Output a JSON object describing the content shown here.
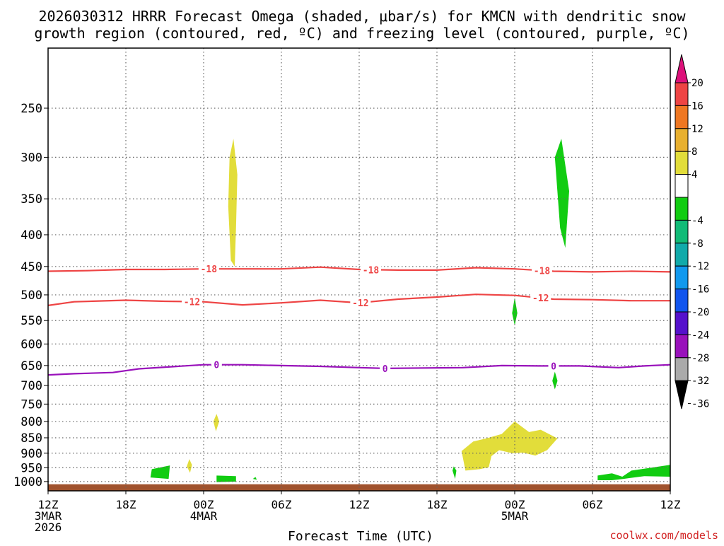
{
  "chart_data": {
    "type": "heatmap",
    "title_line1": "2026030312 HRRR Forecast Omega (shaded, μbar/s) for KMCN with dendritic snow",
    "title_line2": "growth region (contoured, red, ºC) and freezing level (contoured, purple, ºC)",
    "xlabel": "Forecast Time (UTC)",
    "ylabel": "",
    "credit": "coolwx.com/models",
    "x_range_hours": [
      0,
      48
    ],
    "y_range_mb": [
      1035,
      200
    ],
    "y_scale": "log",
    "grid": "dotted",
    "x_ticks": [
      {
        "hour": 0,
        "lines": [
          "12Z",
          "3MAR",
          "2026"
        ]
      },
      {
        "hour": 6,
        "lines": [
          "18Z"
        ]
      },
      {
        "hour": 12,
        "lines": [
          "00Z",
          "4MAR"
        ]
      },
      {
        "hour": 18,
        "lines": [
          "06Z"
        ]
      },
      {
        "hour": 24,
        "lines": [
          "12Z"
        ]
      },
      {
        "hour": 30,
        "lines": [
          "18Z"
        ]
      },
      {
        "hour": 36,
        "lines": [
          "00Z",
          "5MAR"
        ]
      },
      {
        "hour": 42,
        "lines": [
          "06Z"
        ]
      },
      {
        "hour": 48,
        "lines": [
          "12Z"
        ]
      }
    ],
    "y_ticks": [
      250,
      300,
      350,
      400,
      450,
      500,
      550,
      600,
      650,
      700,
      750,
      800,
      850,
      900,
      950,
      1000
    ],
    "colorbar": {
      "labels": [
        "20",
        "16",
        "12",
        "8",
        "4",
        "-4",
        "-8",
        "-12",
        "-16",
        "-20",
        "-24",
        "-28",
        "-32",
        "-36"
      ],
      "above_max_color": "#dd117a",
      "below_min_color": "#000000",
      "bins": [
        {
          "from": 16,
          "to": 20,
          "color": "#ee4444"
        },
        {
          "from": 12,
          "to": 16,
          "color": "#ee7722"
        },
        {
          "from": 8,
          "to": 12,
          "color": "#e8b030"
        },
        {
          "from": 4,
          "to": 8,
          "color": "#e2dd3a"
        },
        {
          "from": -4,
          "to": 4,
          "color": "#ffffff"
        },
        {
          "from": -8,
          "to": -4,
          "color": "#11cc11"
        },
        {
          "from": -12,
          "to": -8,
          "color": "#11bb77"
        },
        {
          "from": -16,
          "to": -12,
          "color": "#11aaaa"
        },
        {
          "from": -20,
          "to": -16,
          "color": "#1199ee"
        },
        {
          "from": -24,
          "to": -20,
          "color": "#1155ee"
        },
        {
          "from": -28,
          "to": -24,
          "color": "#5511cc"
        },
        {
          "from": -32,
          "to": -28,
          "color": "#9911bb"
        },
        {
          "from": -36,
          "to": -32,
          "color": "#aaaaaa"
        }
      ]
    },
    "ground": {
      "from_mb": 1010,
      "color": "#a0522d"
    },
    "contours": [
      {
        "name": "-18",
        "color": "#ee4444",
        "labels_at_hours": [
          12.4,
          24.9,
          38.1
        ],
        "points": [
          [
            0,
            458
          ],
          [
            3,
            457
          ],
          [
            6,
            455
          ],
          [
            9,
            455
          ],
          [
            12,
            454
          ],
          [
            15,
            454
          ],
          [
            18,
            454
          ],
          [
            21,
            451
          ],
          [
            24,
            455
          ],
          [
            27,
            456
          ],
          [
            30,
            456
          ],
          [
            33,
            452
          ],
          [
            36,
            454
          ],
          [
            39,
            458
          ],
          [
            42,
            459
          ],
          [
            45,
            458
          ],
          [
            48,
            459
          ]
        ]
      },
      {
        "name": "-12",
        "color": "#ee4444",
        "labels_at_hours": [
          11.1,
          24.1,
          38.0
        ],
        "points": [
          [
            0,
            520
          ],
          [
            2,
            513
          ],
          [
            6,
            510
          ],
          [
            9,
            512
          ],
          [
            12,
            513
          ],
          [
            15,
            519
          ],
          [
            18,
            515
          ],
          [
            21,
            510
          ],
          [
            24,
            515
          ],
          [
            27,
            508
          ],
          [
            30,
            504
          ],
          [
            33,
            499
          ],
          [
            36,
            501
          ],
          [
            39,
            508
          ],
          [
            42,
            509
          ],
          [
            45,
            511
          ],
          [
            48,
            511
          ]
        ]
      },
      {
        "name": "0",
        "color": "#9911bb",
        "labels_at_hours": [
          13.0,
          26.0,
          39.0
        ],
        "points": [
          [
            0,
            673
          ],
          [
            2,
            670
          ],
          [
            5,
            667
          ],
          [
            7,
            658
          ],
          [
            10,
            652
          ],
          [
            12,
            648
          ],
          [
            15,
            648
          ],
          [
            18,
            650
          ],
          [
            21,
            652
          ],
          [
            24,
            655
          ],
          [
            26,
            657
          ],
          [
            29,
            656
          ],
          [
            32,
            655
          ],
          [
            35,
            650
          ],
          [
            38,
            651
          ],
          [
            41,
            651
          ],
          [
            44,
            655
          ],
          [
            46,
            651
          ],
          [
            48,
            648
          ]
        ]
      }
    ],
    "shaded_regions": [
      {
        "value": 5,
        "points": [
          [
            14.3,
            280
          ],
          [
            14.6,
            320
          ],
          [
            14.5,
            390
          ],
          [
            14.4,
            450
          ],
          [
            14.1,
            440
          ],
          [
            13.9,
            360
          ],
          [
            14.0,
            300
          ]
        ]
      },
      {
        "value": 5,
        "points": [
          [
            13.0,
            778
          ],
          [
            13.2,
            800
          ],
          [
            12.95,
            830
          ],
          [
            12.75,
            800
          ]
        ]
      },
      {
        "value": 5,
        "points": [
          [
            10.9,
            920
          ],
          [
            11.1,
            940
          ],
          [
            10.95,
            968
          ],
          [
            10.7,
            945
          ]
        ]
      },
      {
        "value": 5,
        "points": [
          [
            32.2,
            960
          ],
          [
            31.9,
            893
          ],
          [
            32.8,
            862
          ],
          [
            33.8,
            852
          ],
          [
            35.0,
            838
          ],
          [
            36.0,
            800
          ],
          [
            37.1,
            832
          ],
          [
            38.0,
            825
          ],
          [
            39.3,
            852
          ],
          [
            38.5,
            890
          ],
          [
            37.6,
            908
          ],
          [
            36.6,
            898
          ],
          [
            35.8,
            900
          ],
          [
            34.8,
            890
          ],
          [
            34.2,
            910
          ],
          [
            34.0,
            948
          ],
          [
            33.3,
            955
          ]
        ]
      },
      {
        "value": -6,
        "points": [
          [
            39.6,
            280
          ],
          [
            40.2,
            340
          ],
          [
            39.9,
            420
          ],
          [
            39.5,
            390
          ],
          [
            39.1,
            300
          ]
        ]
      },
      {
        "value": -6,
        "points": [
          [
            36.0,
            505
          ],
          [
            36.2,
            535
          ],
          [
            36.0,
            560
          ],
          [
            35.8,
            535
          ]
        ]
      },
      {
        "value": -6,
        "points": [
          [
            39.1,
            665
          ],
          [
            39.3,
            688
          ],
          [
            39.1,
            710
          ],
          [
            38.9,
            688
          ]
        ]
      },
      {
        "value": -6,
        "points": [
          [
            8.0,
            955
          ],
          [
            9.4,
            942
          ],
          [
            9.3,
            990
          ],
          [
            7.9,
            985
          ]
        ]
      },
      {
        "value": -6,
        "points": [
          [
            13.0,
            978
          ],
          [
            14.5,
            980
          ],
          [
            14.5,
            1000
          ],
          [
            13.0,
            1002
          ]
        ]
      },
      {
        "value": -6,
        "points": [
          [
            15.8,
            990
          ],
          [
            16.0,
            983
          ],
          [
            16.1,
            993
          ]
        ]
      },
      {
        "value": -6,
        "points": [
          [
            31.3,
            945
          ],
          [
            31.5,
            960
          ],
          [
            31.4,
            990
          ],
          [
            31.2,
            960
          ]
        ]
      },
      {
        "value": -6,
        "points": [
          [
            42.4,
            978
          ],
          [
            43.5,
            970
          ],
          [
            44.3,
            982
          ],
          [
            45.0,
            960
          ],
          [
            46.5,
            950
          ],
          [
            48,
            940
          ],
          [
            48,
            982
          ],
          [
            46.0,
            980
          ],
          [
            44.4,
            990
          ],
          [
            43.5,
            995
          ],
          [
            42.4,
            995
          ]
        ]
      }
    ]
  }
}
